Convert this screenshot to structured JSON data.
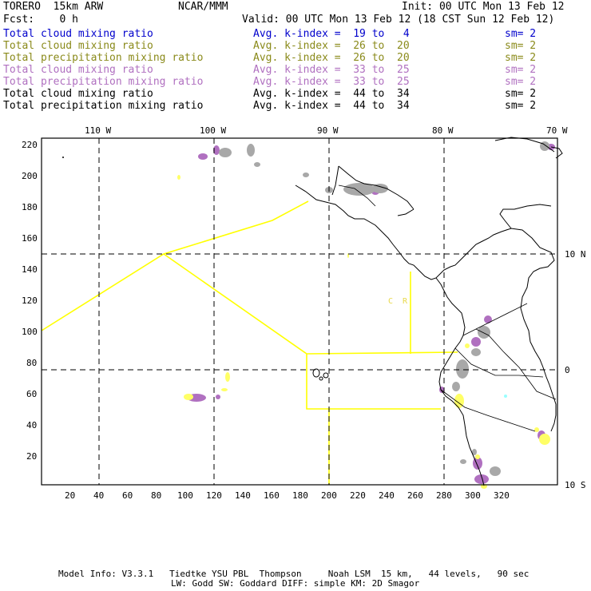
{
  "header": {
    "model": "TORERO  15km ARW",
    "org": "NCAR/MMM",
    "init": "Init: 00 UTC Mon 13 Feb 12",
    "fcst": "Fcst:    0 h",
    "valid": "Valid: 00 UTC Mon 13 Feb 12 (18 CST Sun 12 Feb 12)"
  },
  "legend": [
    {
      "field": "Total cloud mixing ratio",
      "kindex": "Avg. k-index =  19 to   4",
      "sm": "sm= 2",
      "color": "#0000cc"
    },
    {
      "field": "Total cloud mixing ratio",
      "kindex": "Avg. k-index =  26 to  20",
      "sm": "sm= 2",
      "color": "#8a8a1a"
    },
    {
      "field": "Total precipitation mixing ratio",
      "kindex": "Avg. k-index =  26 to  20",
      "sm": "sm= 2",
      "color": "#8a8a1a"
    },
    {
      "field": "Total cloud mixing ratio",
      "kindex": "Avg. k-index =  33 to  25",
      "sm": "sm= 2",
      "color": "#b070c0"
    },
    {
      "field": "Total precipitation mixing ratio",
      "kindex": "Avg. k-index =  33 to  25",
      "sm": "sm= 2",
      "color": "#b070c0"
    },
    {
      "field": "Total cloud mixing ratio",
      "kindex": "Avg. k-index =  44 to  34",
      "sm": "sm= 2",
      "color": "#000000"
    },
    {
      "field": "Total precipitation mixing ratio",
      "kindex": "Avg. k-index =  44 to  34",
      "sm": "sm= 2",
      "color": "#000000"
    }
  ],
  "map": {
    "lon_labels": [
      "110 W",
      "100 W",
      "90 W",
      "80 W",
      "70 W"
    ],
    "lat_labels": [
      "10 N",
      "0",
      "10 S"
    ],
    "x_ticks": [
      "20",
      "40",
      "60",
      "80",
      "100",
      "120",
      "140",
      "160",
      "180",
      "200",
      "220",
      "240",
      "260",
      "280",
      "300",
      "320"
    ],
    "y_ticks": [
      "220",
      "200",
      "180",
      "160",
      "140",
      "120",
      "100",
      "80",
      "60",
      "40",
      "20"
    ],
    "annotation": "C  R",
    "colors": {
      "domain_outline": "#ffff00",
      "coast": "#000000",
      "grey_field": "#a8a8a8",
      "violet_field": "#b070c0",
      "yellow_field": "#ffff66"
    }
  },
  "footer": {
    "line1": "Model Info: V3.3.1   Tiedtke YSU PBL  Thompson     Noah LSM  15 km,   44 levels,   90 sec",
    "line2": "LW: Godd SW: Goddard DIFF: simple KM: 2D Smagor"
  }
}
